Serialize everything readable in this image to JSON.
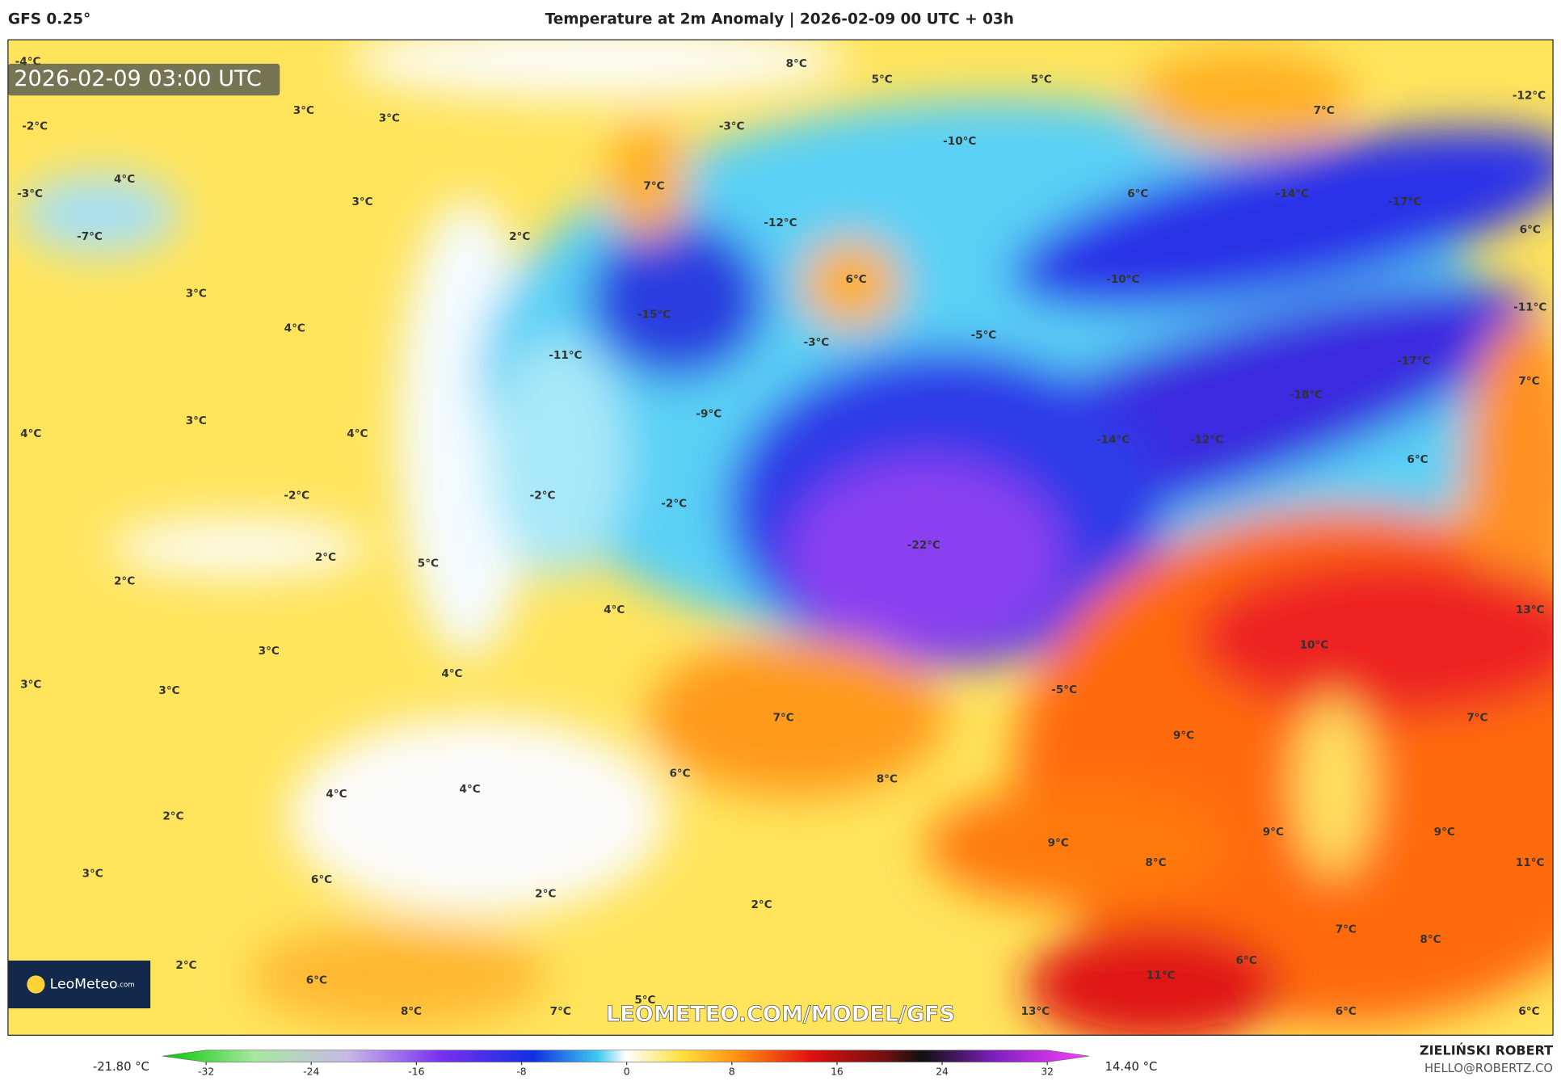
{
  "header": {
    "model": "GFS 0.25°",
    "title": "Temperature at 2m Anomaly | 2026-02-09 00 UTC + 03h"
  },
  "map": {
    "timestamp": "2026-02-09 03:00 UTC",
    "watermark": "LEOMETEO.COM/MODEL/GFS",
    "logo": {
      "name": "LeoMeteo",
      "suffix": ".com"
    },
    "labels": [
      "-4°C",
      "8°C",
      "5°C",
      "5°C",
      "-12°C",
      "3°C",
      "3°C",
      "-2°C",
      "-3°C",
      "-10°C",
      "7°C",
      "4°C",
      "-3°C",
      "7°C",
      "3°C",
      "6°C",
      "-14°C",
      "-17°C",
      "-7°C",
      "2°C",
      "-12°C",
      "6°C",
      "6°C",
      "-10°C",
      "3°C",
      "4°C",
      "-15°C",
      "-11°C",
      "-5°C",
      "-3°C",
      "-11°C",
      "-17°C",
      "7°C",
      "-18°C",
      "-9°C",
      "3°C",
      "4°C",
      "4°C",
      "-14°C",
      "-12°C",
      "6°C",
      "-2°C",
      "-2°C",
      "-2°C",
      "-22°C",
      "2°C",
      "5°C",
      "2°C",
      "4°C",
      "13°C",
      "10°C",
      "3°C",
      "4°C",
      "3°C",
      "3°C",
      "-5°C",
      "7°C",
      "7°C",
      "9°C",
      "6°C",
      "8°C",
      "4°C",
      "4°C",
      "2°C",
      "9°C",
      "9°C",
      "9°C",
      "8°C",
      "11°C",
      "3°C",
      "6°C",
      "2°C",
      "2°C",
      "7°C",
      "8°C",
      "2°C",
      "6°C",
      "11°C",
      "6°C",
      "5°C",
      "8°C",
      "7°C",
      "13°C",
      "6°C",
      "6°C"
    ]
  },
  "colorbar": {
    "min_label": "-21.80 °C",
    "max_label": "14.40 °C",
    "lim": [
      -32,
      32
    ],
    "ticks": [
      -32,
      -24,
      -16,
      -8,
      0,
      8,
      16,
      24,
      32
    ]
  },
  "footer": {
    "author": "ZIELIŃSKI ROBERT",
    "email": "HELLO@ROBERTZ.CO"
  }
}
